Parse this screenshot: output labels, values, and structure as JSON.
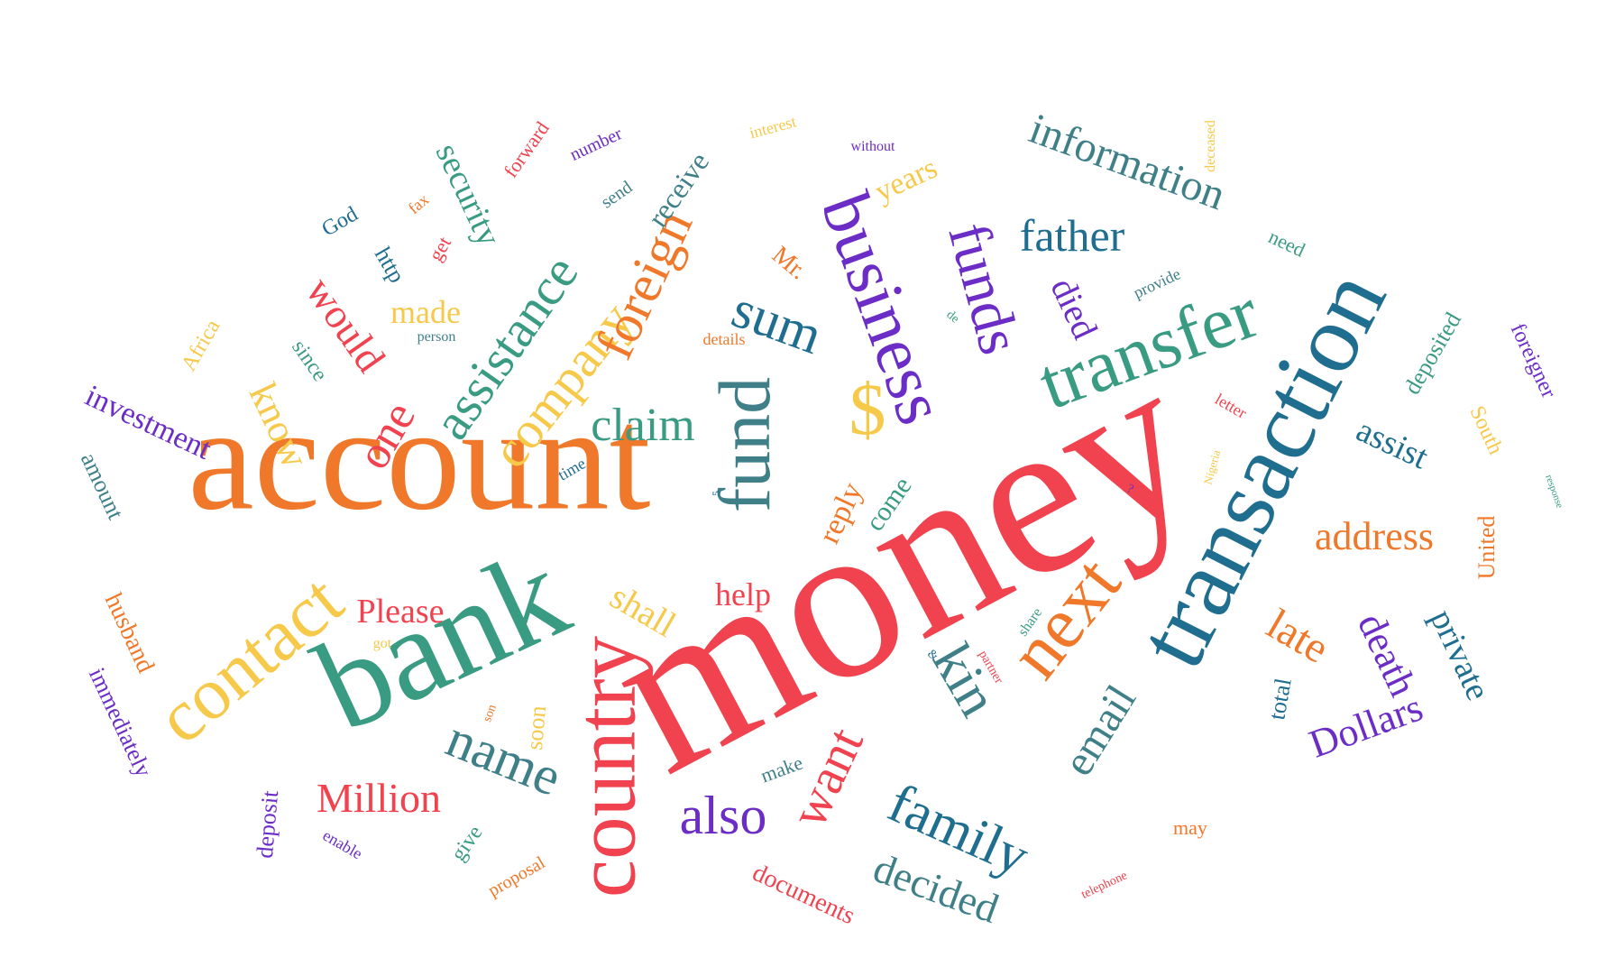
{
  "palette": {
    "purple": "#6c2dc7",
    "red": "#f0434f",
    "orange": "#f0782a",
    "yellow": "#f6c94a",
    "teal": "#3a9b83",
    "blue": "#1f6e90",
    "slate": "#3f8088",
    "gold": "#e8c05a"
  },
  "words": [
    {
      "text": "money",
      "color": "#f0434f"
    },
    {
      "text": "account",
      "color": "#f0782a"
    },
    {
      "text": "bank",
      "color": "#3a9b83"
    },
    {
      "text": "transaction",
      "color": "#1f6e90"
    },
    {
      "text": "country",
      "color": "#f0434f"
    },
    {
      "text": "contact",
      "color": "#f6c94a"
    },
    {
      "text": "fund",
      "color": "#3f8088"
    },
    {
      "text": "business",
      "color": "#6c2dc7"
    },
    {
      "text": "transfer",
      "color": "#3a9b83"
    },
    {
      "text": "next",
      "color": "#f0782a"
    },
    {
      "text": "funds",
      "color": "#6c2dc7"
    },
    {
      "text": "kin",
      "color": "#3f8088"
    },
    {
      "text": "name",
      "color": "#3f8088"
    },
    {
      "text": "family",
      "color": "#1f6e90"
    },
    {
      "text": "company",
      "color": "#f6c94a"
    },
    {
      "text": "assistance",
      "color": "#3a9b83"
    },
    {
      "text": "foreign",
      "color": "#f0782a"
    },
    {
      "text": "also",
      "color": "#6c2dc7"
    },
    {
      "text": "want",
      "color": "#f0434f"
    },
    {
      "text": "sum",
      "color": "#1f6e90"
    },
    {
      "text": "claim",
      "color": "#3a9b83"
    },
    {
      "text": "$",
      "color": "#f6c94a"
    },
    {
      "text": "information",
      "color": "#3f8088"
    },
    {
      "text": "father",
      "color": "#1f6e90"
    },
    {
      "text": "email",
      "color": "#3f8088"
    },
    {
      "text": "decided",
      "color": "#3f8088"
    },
    {
      "text": "Million",
      "color": "#f0434f"
    },
    {
      "text": "one",
      "color": "#f0434f"
    },
    {
      "text": "would",
      "color": "#f0434f"
    },
    {
      "text": "know",
      "color": "#f6c94a"
    },
    {
      "text": "address",
      "color": "#f0782a"
    },
    {
      "text": "late",
      "color": "#f0782a"
    },
    {
      "text": "death",
      "color": "#6c2dc7"
    },
    {
      "text": "Dollars",
      "color": "#6c2dc7"
    },
    {
      "text": "private",
      "color": "#1f6e90"
    },
    {
      "text": "assist",
      "color": "#1f6e90"
    },
    {
      "text": "died",
      "color": "#6c2dc7"
    },
    {
      "text": "security",
      "color": "#3a9b83"
    },
    {
      "text": "shall",
      "color": "#f6c94a"
    },
    {
      "text": "Please",
      "color": "#f0434f"
    },
    {
      "text": "help",
      "color": "#f0434f"
    },
    {
      "text": "reply",
      "color": "#f0782a"
    },
    {
      "text": "come",
      "color": "#3a9b83"
    },
    {
      "text": "made",
      "color": "#f6c94a"
    },
    {
      "text": "receive",
      "color": "#3f8088"
    },
    {
      "text": "years",
      "color": "#f6c94a"
    },
    {
      "text": "investment",
      "color": "#6c2dc7"
    },
    {
      "text": "amount",
      "color": "#3f8088"
    },
    {
      "text": "husband",
      "color": "#f0782a"
    },
    {
      "text": "immediately",
      "color": "#6c2dc7"
    },
    {
      "text": "deposit",
      "color": "#6c2dc7"
    },
    {
      "text": "documents",
      "color": "#f0434f"
    },
    {
      "text": "soon",
      "color": "#f6c94a"
    },
    {
      "text": "deposited",
      "color": "#3a9b83"
    },
    {
      "text": "foreigner",
      "color": "#6c2dc7"
    },
    {
      "text": "South",
      "color": "#f6c94a"
    },
    {
      "text": "United",
      "color": "#f0782a"
    },
    {
      "text": "total",
      "color": "#1f6e90"
    },
    {
      "text": "Africa",
      "color": "#f6c94a"
    },
    {
      "text": "since",
      "color": "#3a9b83"
    },
    {
      "text": "God",
      "color": "#1f6e90"
    },
    {
      "text": "http",
      "color": "#1f6e90"
    },
    {
      "text": "get",
      "color": "#f0434f"
    },
    {
      "text": "forward",
      "color": "#f0434f"
    },
    {
      "text": "number",
      "color": "#6c2dc7"
    },
    {
      "text": "send",
      "color": "#3f8088"
    },
    {
      "text": "interest",
      "color": "#f6c94a"
    },
    {
      "text": "without",
      "color": "#6c2dc7"
    },
    {
      "text": "deceased",
      "color": "#f6c94a"
    },
    {
      "text": "need",
      "color": "#3a9b83"
    },
    {
      "text": "provide",
      "color": "#3f8088"
    },
    {
      "text": "Mr.",
      "color": "#f0782a"
    },
    {
      "text": "details",
      "color": "#f0782a"
    },
    {
      "text": "person",
      "color": "#3f8088"
    },
    {
      "text": "fax",
      "color": "#f0782a"
    },
    {
      "text": "time",
      "color": "#1f6e90"
    },
    {
      "text": "de",
      "color": "#3a9b83"
    },
    {
      "text": "letter",
      "color": "#f0434f"
    },
    {
      "text": "Nigeria",
      "color": "#f6c94a"
    },
    {
      "text": "response",
      "color": "#3a9b83"
    },
    {
      "text": "may",
      "color": "#f0782a"
    },
    {
      "text": "telephone",
      "color": "#f0434f"
    },
    {
      "text": "partner",
      "color": "#f0434f"
    },
    {
      "text": "share",
      "color": "#3a9b83"
    },
    {
      "text": "make",
      "color": "#3f8088"
    },
    {
      "text": "give",
      "color": "#3a9b83"
    },
    {
      "text": "proposal",
      "color": "#f0782a"
    },
    {
      "text": "enable",
      "color": "#6c2dc7"
    },
    {
      "text": "got",
      "color": "#f6c94a"
    },
    {
      "text": "son",
      "color": "#f0782a"
    },
    {
      "text": "&",
      "color": "#1f6e90"
    },
    {
      "text": "?",
      "color": "#6c2dc7"
    },
    {
      "text": "5",
      "color": "#1f6e90"
    }
  ]
}
